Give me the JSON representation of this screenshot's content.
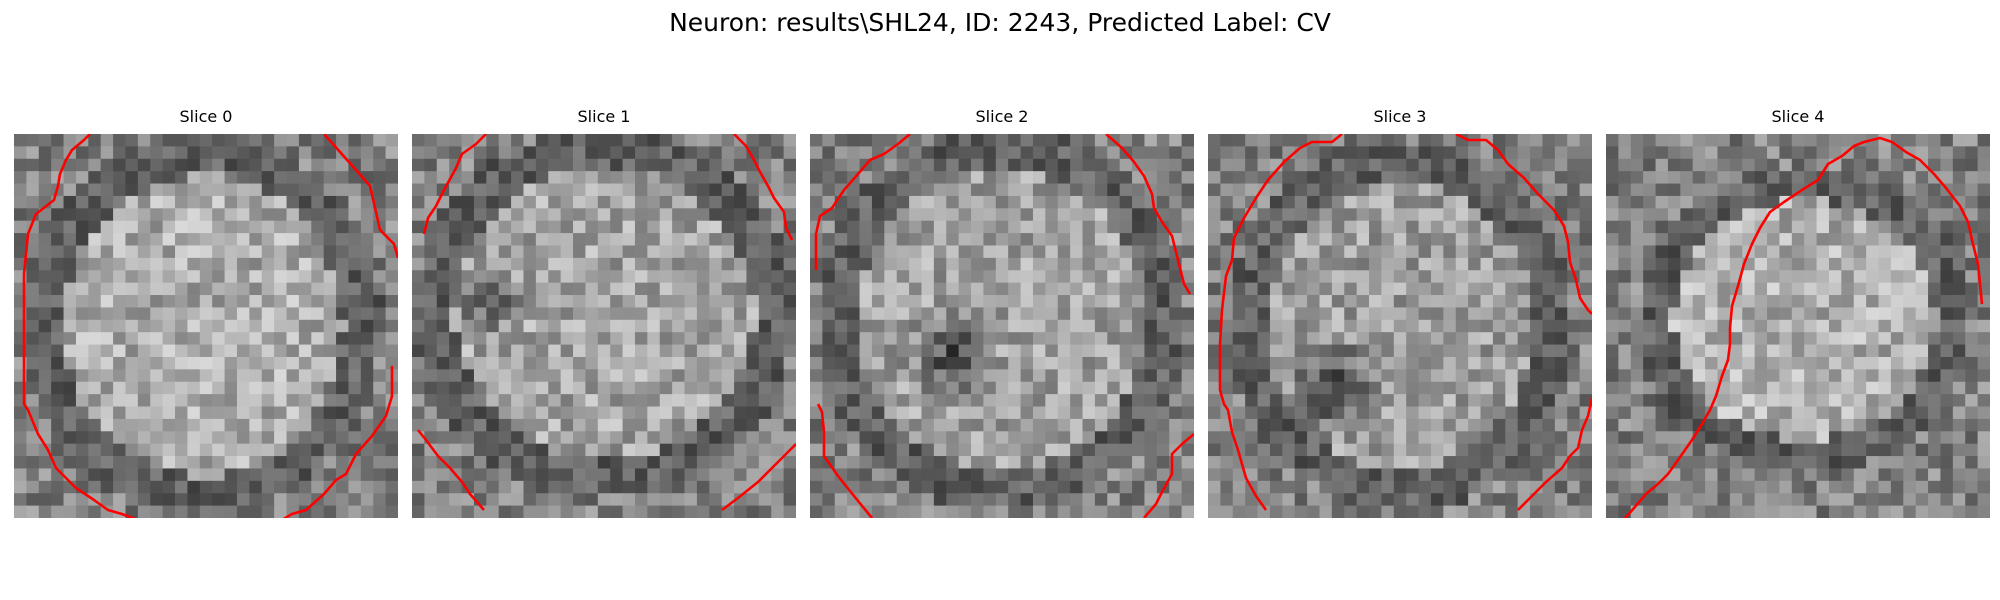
{
  "figure": {
    "title": "Neuron: results\\SHL24, ID: 2243, Predicted Label: CV"
  },
  "panels": [
    {
      "title": "Slice 0"
    },
    {
      "title": "Slice 1"
    },
    {
      "title": "Slice 2"
    },
    {
      "title": "Slice 3"
    },
    {
      "title": "Slice 4"
    }
  ],
  "colors": {
    "contour": "#ff0000",
    "colormap": "grayscale"
  }
}
